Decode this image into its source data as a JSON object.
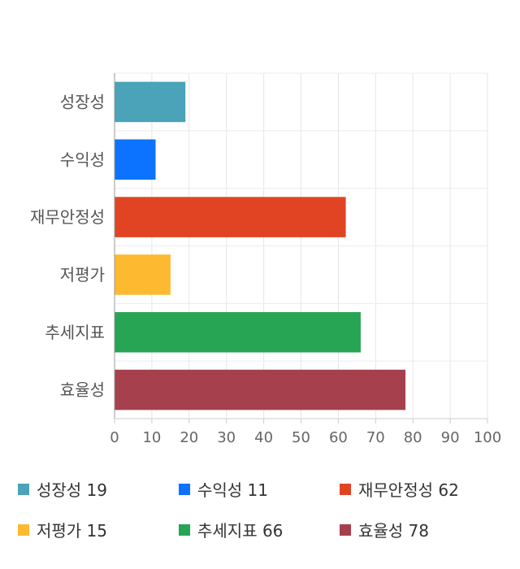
{
  "chart_data": {
    "type": "bar",
    "orientation": "horizontal",
    "categories": [
      "성장성",
      "수익성",
      "재무안정성",
      "저평가",
      "추세지표",
      "효율성"
    ],
    "values": [
      19,
      11,
      62,
      15,
      66,
      78
    ],
    "colors": [
      "#4aa3b8",
      "#0b73ff",
      "#e14423",
      "#fdb930",
      "#27a454",
      "#a6404d"
    ],
    "xlim": [
      0,
      100
    ],
    "xticks": [
      0,
      10,
      20,
      30,
      40,
      50,
      60,
      70,
      80,
      90,
      100
    ],
    "grid": true,
    "legend_position": "bottom"
  },
  "legend": [
    {
      "label": "성장성 19",
      "color": "#4aa3b8"
    },
    {
      "label": "수익성 11",
      "color": "#0b73ff"
    },
    {
      "label": "재무안정성 62",
      "color": "#e14423"
    },
    {
      "label": "저평가 15",
      "color": "#fdb930"
    },
    {
      "label": "추세지표 66",
      "color": "#27a454"
    },
    {
      "label": "효율성 78",
      "color": "#a6404d"
    }
  ]
}
